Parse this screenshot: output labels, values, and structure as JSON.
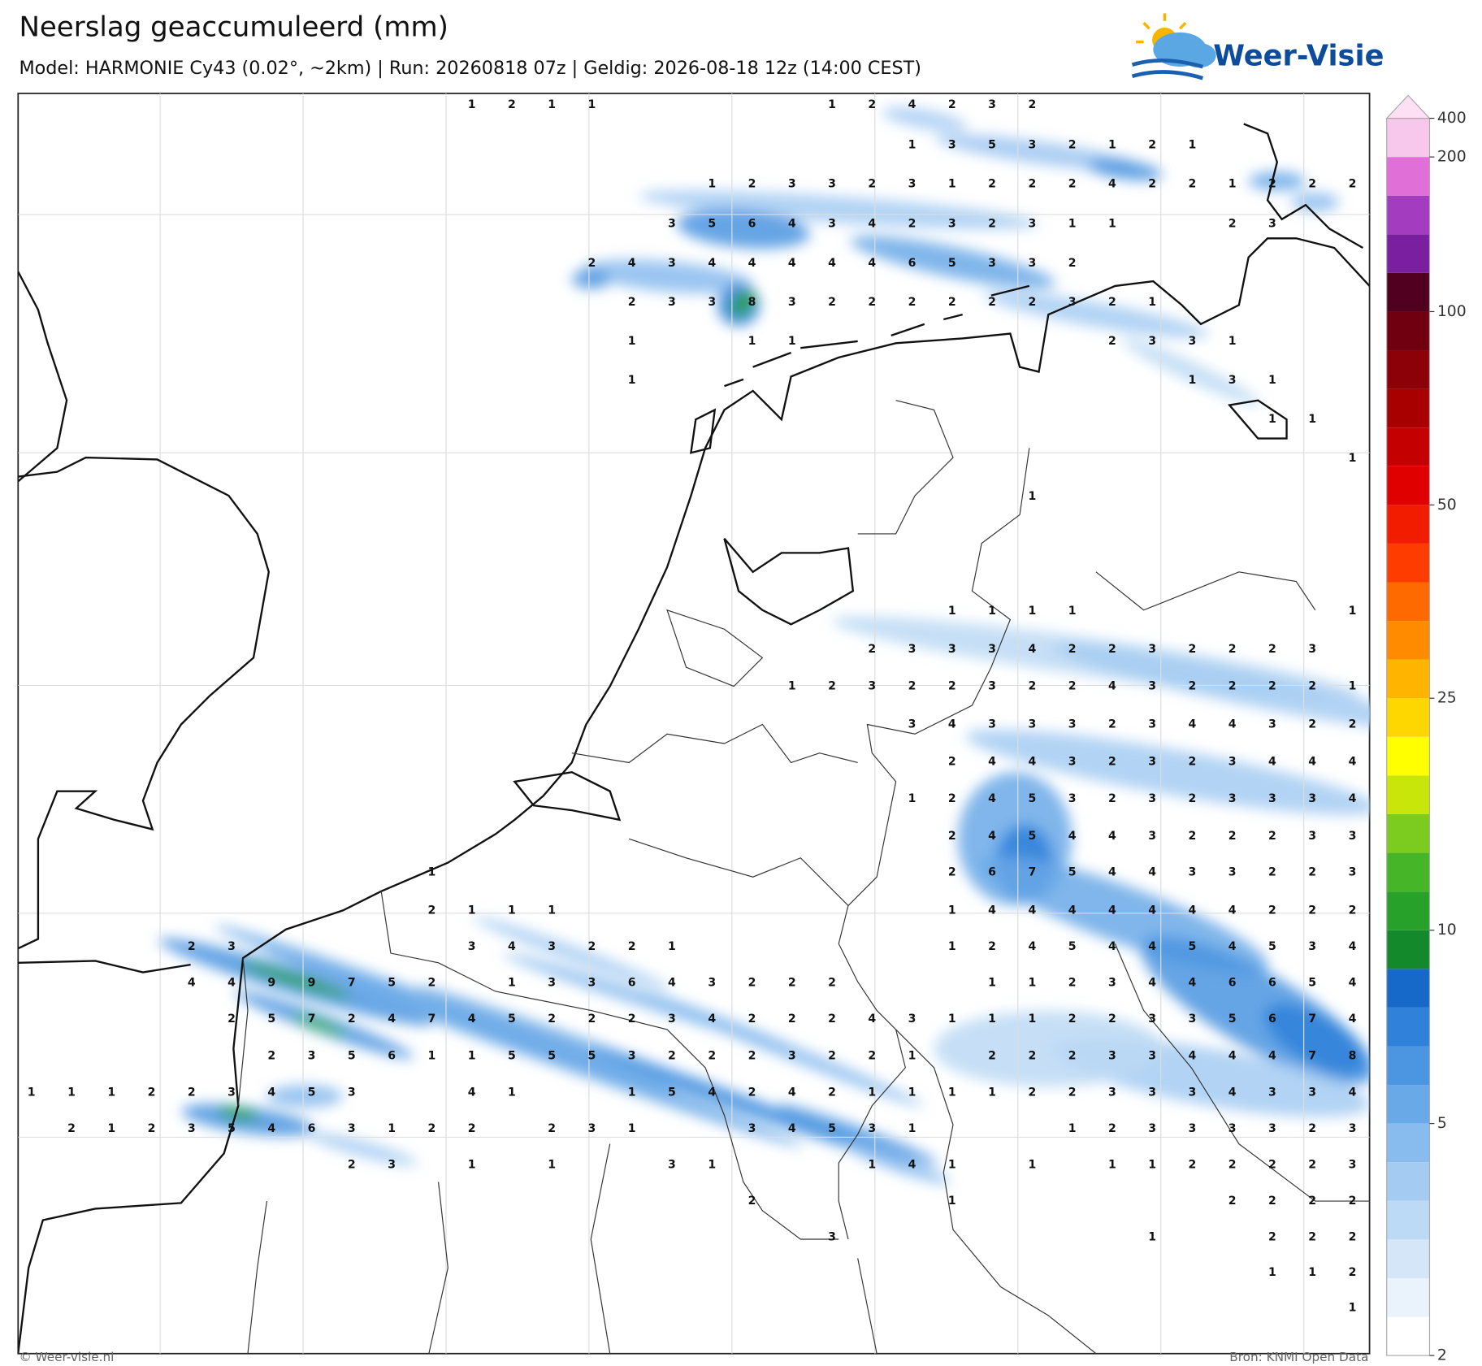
{
  "header": {
    "title": "Neerslag geaccumuleerd (mm)",
    "subtitle": "Model: HARMONIE Cy43 (0.02°, ~2km)  |  Run: 20260818 07z  |  Geldig: 2026-08-18 12z (14:00 CEST)",
    "logo": "Weer-Visie"
  },
  "map": {
    "grid": [
      [
        null,
        null,
        null,
        null,
        null,
        null,
        null,
        null,
        null,
        null,
        null,
        1,
        2,
        1,
        1,
        null,
        null,
        null,
        null,
        null,
        1,
        2,
        4,
        2,
        3,
        2,
        null,
        null,
        null,
        null,
        null,
        null,
        null,
        null
      ],
      [
        null,
        null,
        null,
        null,
        null,
        null,
        null,
        null,
        null,
        null,
        null,
        null,
        null,
        null,
        null,
        null,
        null,
        null,
        null,
        null,
        null,
        null,
        1,
        3,
        5,
        3,
        2,
        1,
        2,
        1,
        null,
        null,
        null,
        null
      ],
      [
        null,
        null,
        null,
        null,
        null,
        null,
        null,
        null,
        null,
        null,
        null,
        null,
        null,
        null,
        null,
        null,
        null,
        1,
        2,
        3,
        3,
        2,
        3,
        1,
        2,
        2,
        2,
        4,
        2,
        2,
        1,
        2,
        2,
        2
      ],
      [
        null,
        null,
        null,
        null,
        null,
        null,
        null,
        null,
        null,
        null,
        null,
        null,
        null,
        null,
        null,
        null,
        3,
        5,
        6,
        4,
        3,
        4,
        2,
        3,
        2,
        3,
        1,
        1,
        null,
        null,
        2,
        3,
        null,
        null
      ],
      [
        null,
        null,
        null,
        null,
        null,
        null,
        null,
        null,
        null,
        null,
        null,
        null,
        null,
        null,
        2,
        4,
        3,
        4,
        4,
        4,
        4,
        4,
        6,
        5,
        3,
        3,
        2,
        null,
        null,
        null,
        null,
        null,
        null,
        null
      ],
      [
        null,
        null,
        null,
        null,
        null,
        null,
        null,
        null,
        null,
        null,
        null,
        null,
        null,
        null,
        null,
        2,
        3,
        3,
        8,
        3,
        2,
        2,
        2,
        2,
        2,
        2,
        3,
        2,
        1,
        null,
        null,
        null,
        null,
        null
      ],
      [
        null,
        null,
        null,
        null,
        null,
        null,
        null,
        null,
        null,
        null,
        null,
        null,
        null,
        null,
        null,
        1,
        null,
        null,
        1,
        1,
        null,
        null,
        null,
        null,
        null,
        null,
        null,
        2,
        3,
        3,
        1,
        null,
        null,
        null
      ],
      [
        null,
        null,
        null,
        null,
        null,
        null,
        null,
        null,
        null,
        null,
        null,
        null,
        null,
        null,
        null,
        1,
        null,
        null,
        null,
        null,
        null,
        null,
        null,
        null,
        null,
        null,
        null,
        null,
        null,
        1,
        3,
        1,
        null,
        null
      ],
      [
        null,
        null,
        null,
        null,
        null,
        null,
        null,
        null,
        null,
        null,
        null,
        null,
        null,
        null,
        null,
        null,
        null,
        null,
        null,
        null,
        null,
        null,
        null,
        null,
        null,
        null,
        null,
        null,
        null,
        null,
        null,
        1,
        1,
        null
      ],
      [
        null,
        null,
        null,
        null,
        null,
        null,
        null,
        null,
        null,
        null,
        null,
        null,
        null,
        null,
        null,
        null,
        null,
        null,
        null,
        null,
        null,
        null,
        null,
        null,
        null,
        null,
        null,
        null,
        null,
        null,
        null,
        null,
        null,
        1
      ],
      [
        null,
        null,
        null,
        null,
        null,
        null,
        null,
        null,
        null,
        null,
        null,
        null,
        null,
        null,
        null,
        null,
        null,
        null,
        null,
        null,
        null,
        null,
        null,
        null,
        null,
        1,
        null,
        null,
        null,
        null,
        null,
        null,
        null,
        null
      ],
      [
        null,
        null,
        null,
        null,
        null,
        null,
        null,
        null,
        null,
        null,
        null,
        null,
        null,
        null,
        null,
        null,
        null,
        null,
        null,
        null,
        null,
        null,
        null,
        null,
        null,
        null,
        null,
        null,
        null,
        null,
        null,
        null,
        null,
        null
      ],
      [
        null,
        null,
        null,
        null,
        null,
        null,
        null,
        null,
        null,
        null,
        null,
        null,
        null,
        null,
        null,
        null,
        null,
        null,
        null,
        null,
        null,
        null,
        null,
        null,
        null,
        null,
        null,
        null,
        null,
        null,
        null,
        null,
        null,
        null
      ],
      [
        null,
        null,
        null,
        null,
        null,
        null,
        null,
        null,
        null,
        null,
        null,
        null,
        null,
        null,
        null,
        null,
        null,
        null,
        null,
        null,
        null,
        null,
        null,
        1,
        1,
        1,
        1,
        null,
        null,
        null,
        null,
        null,
        null,
        1
      ],
      [
        null,
        null,
        null,
        null,
        null,
        null,
        null,
        null,
        null,
        null,
        null,
        null,
        null,
        null,
        null,
        null,
        null,
        null,
        null,
        null,
        null,
        2,
        3,
        3,
        3,
        4,
        2,
        2,
        3,
        2,
        2,
        2,
        3,
        null
      ],
      [
        null,
        null,
        null,
        null,
        null,
        null,
        null,
        null,
        null,
        null,
        null,
        null,
        null,
        null,
        null,
        null,
        null,
        null,
        null,
        1,
        2,
        3,
        2,
        2,
        3,
        2,
        2,
        4,
        3,
        2,
        2,
        2,
        2,
        1
      ],
      [
        null,
        null,
        null,
        null,
        null,
        null,
        null,
        null,
        null,
        null,
        null,
        null,
        null,
        null,
        null,
        null,
        null,
        null,
        null,
        null,
        null,
        null,
        3,
        4,
        3,
        3,
        3,
        2,
        3,
        4,
        4,
        3,
        2,
        2
      ],
      [
        null,
        null,
        null,
        null,
        null,
        null,
        null,
        null,
        null,
        null,
        null,
        null,
        null,
        null,
        null,
        null,
        null,
        null,
        null,
        null,
        null,
        null,
        null,
        2,
        4,
        4,
        3,
        2,
        3,
        2,
        3,
        4,
        4,
        4
      ],
      [
        null,
        null,
        null,
        null,
        null,
        null,
        null,
        null,
        null,
        null,
        null,
        null,
        null,
        null,
        null,
        null,
        null,
        null,
        null,
        null,
        null,
        null,
        1,
        2,
        4,
        5,
        3,
        2,
        3,
        2,
        3,
        3,
        3,
        4
      ],
      [
        null,
        null,
        null,
        null,
        null,
        null,
        null,
        null,
        null,
        null,
        null,
        null,
        null,
        null,
        null,
        null,
        null,
        null,
        null,
        null,
        null,
        null,
        null,
        2,
        4,
        5,
        4,
        4,
        3,
        2,
        2,
        2,
        3,
        3
      ],
      [
        null,
        null,
        null,
        null,
        null,
        null,
        null,
        null,
        null,
        null,
        1,
        null,
        null,
        null,
        null,
        null,
        null,
        null,
        null,
        null,
        null,
        null,
        null,
        2,
        6,
        7,
        5,
        4,
        4,
        3,
        3,
        2,
        2,
        3
      ],
      [
        null,
        null,
        null,
        null,
        null,
        null,
        null,
        null,
        null,
        null,
        2,
        1,
        1,
        1,
        null,
        null,
        null,
        null,
        null,
        null,
        null,
        null,
        null,
        1,
        4,
        4,
        4,
        4,
        4,
        4,
        4,
        2,
        2,
        2
      ],
      [
        null,
        null,
        null,
        null,
        2,
        3,
        null,
        null,
        null,
        null,
        null,
        3,
        4,
        3,
        2,
        2,
        1,
        null,
        null,
        null,
        null,
        null,
        null,
        1,
        2,
        4,
        5,
        4,
        4,
        5,
        4,
        5,
        3,
        4
      ],
      [
        null,
        null,
        null,
        null,
        4,
        4,
        9,
        9,
        7,
        5,
        2,
        null,
        1,
        3,
        3,
        6,
        4,
        3,
        2,
        2,
        2,
        null,
        null,
        null,
        1,
        1,
        2,
        3,
        4,
        4,
        6,
        6,
        5,
        4
      ],
      [
        null,
        null,
        null,
        null,
        null,
        2,
        5,
        7,
        2,
        4,
        7,
        4,
        5,
        2,
        2,
        2,
        3,
        4,
        2,
        2,
        2,
        4,
        3,
        1,
        1,
        1,
        2,
        2,
        3,
        3,
        5,
        6,
        7,
        4
      ],
      [
        null,
        null,
        null,
        null,
        null,
        null,
        2,
        3,
        5,
        6,
        1,
        1,
        5,
        5,
        5,
        3,
        2,
        2,
        2,
        3,
        2,
        2,
        1,
        null,
        2,
        2,
        2,
        3,
        3,
        4,
        4,
        4,
        7,
        8
      ],
      [
        1,
        1,
        1,
        2,
        2,
        3,
        4,
        5,
        3,
        null,
        null,
        4,
        1,
        null,
        null,
        1,
        5,
        4,
        2,
        4,
        2,
        1,
        1,
        1,
        1,
        2,
        2,
        3,
        3,
        3,
        4,
        3,
        3,
        4
      ],
      [
        null,
        2,
        1,
        2,
        3,
        5,
        4,
        6,
        3,
        1,
        2,
        2,
        null,
        2,
        3,
        1,
        null,
        null,
        3,
        4,
        5,
        3,
        1,
        null,
        null,
        null,
        1,
        2,
        3,
        3,
        3,
        3,
        2,
        3
      ],
      [
        null,
        null,
        null,
        null,
        null,
        null,
        null,
        null,
        2,
        3,
        null,
        1,
        null,
        1,
        null,
        null,
        3,
        1,
        null,
        null,
        null,
        1,
        4,
        1,
        null,
        1,
        null,
        1,
        1,
        2,
        2,
        2,
        2,
        3
      ],
      [
        null,
        null,
        null,
        null,
        null,
        null,
        null,
        null,
        null,
        null,
        null,
        null,
        null,
        null,
        null,
        null,
        null,
        null,
        2,
        null,
        null,
        null,
        null,
        1,
        null,
        null,
        null,
        null,
        null,
        null,
        2,
        2,
        2,
        2
      ],
      [
        null,
        null,
        null,
        null,
        null,
        null,
        null,
        null,
        null,
        null,
        null,
        null,
        null,
        null,
        null,
        null,
        null,
        null,
        null,
        null,
        3,
        null,
        null,
        null,
        null,
        null,
        null,
        null,
        1,
        null,
        null,
        2,
        2,
        2
      ],
      [
        null,
        null,
        null,
        null,
        null,
        null,
        null,
        null,
        null,
        null,
        null,
        null,
        null,
        null,
        null,
        null,
        null,
        null,
        null,
        null,
        null,
        null,
        null,
        null,
        null,
        null,
        null,
        null,
        null,
        null,
        null,
        1,
        1,
        2
      ],
      [
        null,
        null,
        null,
        null,
        null,
        null,
        null,
        null,
        null,
        null,
        null,
        null,
        null,
        null,
        null,
        null,
        null,
        null,
        null,
        null,
        null,
        null,
        null,
        null,
        null,
        null,
        null,
        null,
        null,
        null,
        null,
        null,
        null,
        1
      ]
    ]
  },
  "legend": {
    "colors": [
      "#ffffff",
      "#eaf2fb",
      "#d4e6f8",
      "#bcd9f5",
      "#a4cbf2",
      "#88bbee",
      "#6aa9e8",
      "#4b95e1",
      "#2f81d9",
      "#1668c9",
      "#14892b",
      "#27a12a",
      "#46b628",
      "#7ccc1f",
      "#c8e60a",
      "#ffff00",
      "#ffd700",
      "#ffb400",
      "#ff8c00",
      "#ff6a00",
      "#ff3c00",
      "#f21c00",
      "#e00000",
      "#c40000",
      "#a80000",
      "#8c0008",
      "#700010",
      "#520020",
      "#7a1fa0",
      "#a43cc0",
      "#e070d8",
      "#f8c8ec",
      "#fde0f4"
    ],
    "labels": [
      400,
      200,
      100,
      50,
      25,
      10,
      5,
      2
    ]
  },
  "footer": {
    "copyright": "© Weer-visie.nl",
    "source": "Bron: KNMI Open Data"
  }
}
